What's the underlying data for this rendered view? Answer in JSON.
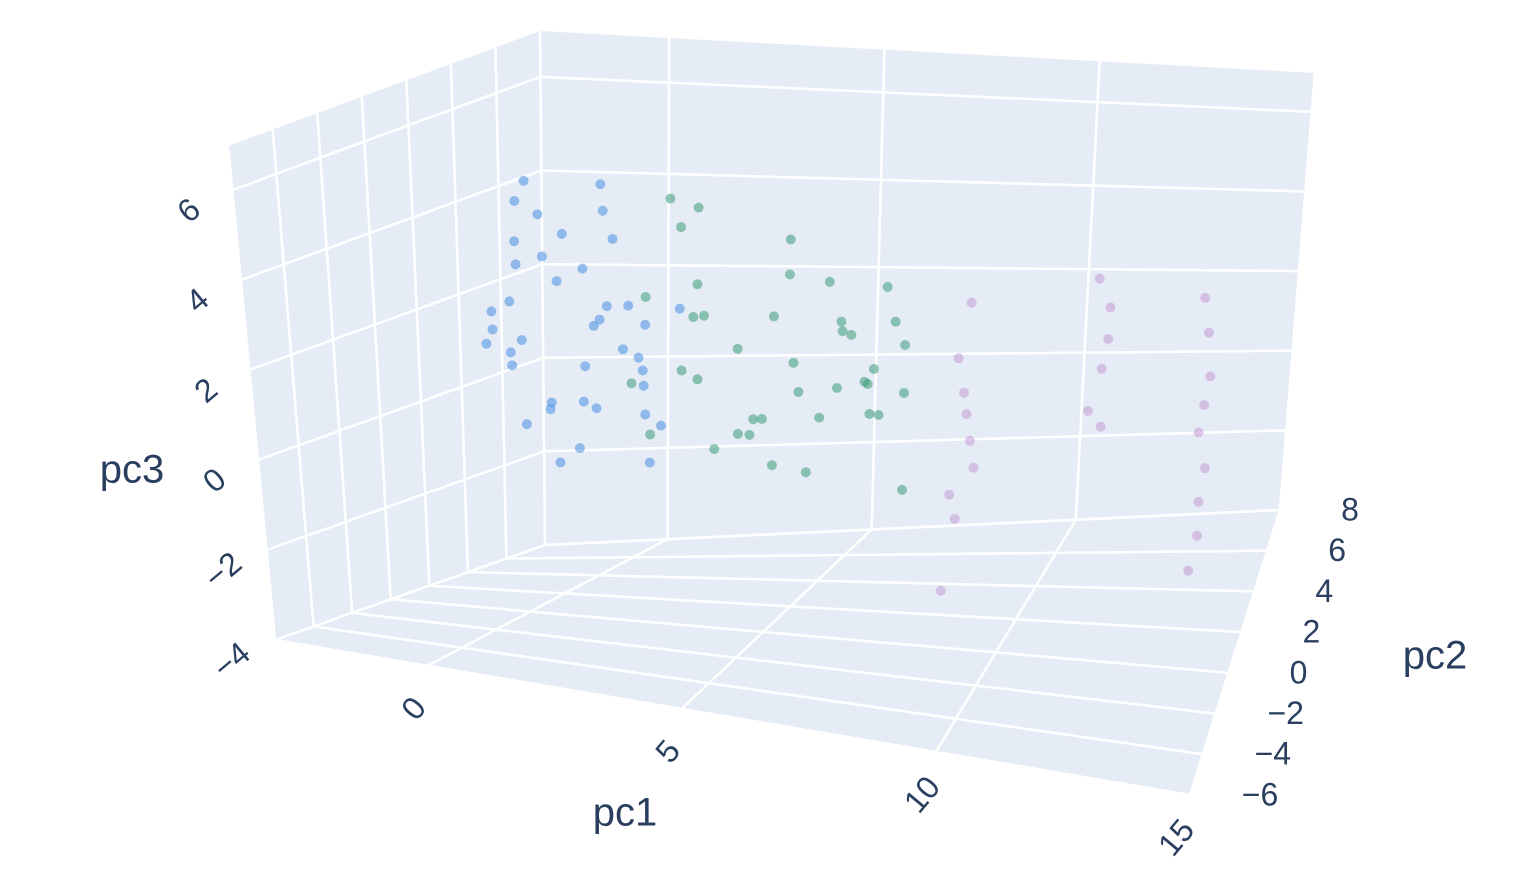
{
  "chart_data": {
    "type": "scatter3d",
    "x_label": "pc1",
    "y_label": "pc2",
    "z_label": "pc3",
    "xlim": [
      -3,
      15
    ],
    "ylim": [
      -6,
      8
    ],
    "zlim": [
      -4,
      7
    ],
    "xticks": [
      0,
      5,
      10,
      15
    ],
    "yticks": [
      {
        "value": -6,
        "label": "−6"
      },
      {
        "value": -4,
        "label": "−4"
      },
      {
        "value": -2,
        "label": "−2"
      },
      0,
      2,
      4,
      6,
      8
    ],
    "zticks": [
      {
        "value": -4,
        "label": "−4"
      },
      {
        "value": -2,
        "label": "−2"
      },
      0,
      2,
      4,
      6
    ],
    "grid": true,
    "series": [
      {
        "color": "#4a90e2",
        "x": [
          -1.2,
          -0.5,
          0.3,
          1.1,
          -0.8,
          0.6,
          1.8,
          -1.5,
          0.0,
          0.9,
          2.2,
          -0.3,
          1.4,
          -1.0,
          0.5,
          1.9,
          -0.6,
          0.2,
          1.2,
          -1.3,
          0.8,
          2.4,
          -0.1,
          1.6,
          -0.9,
          0.4,
          1.0,
          -0.4,
          2.0,
          0.7,
          -1.1,
          1.3,
          0.1,
          -0.7,
          1.7,
          0.3,
          -0.2,
          1.5,
          0.9,
          -1.4
        ],
        "y": [
          1.2,
          2.5,
          0.8,
          3.1,
          1.9,
          0.4,
          2.2,
          3.5,
          1.5,
          2.8,
          0.9,
          3.8,
          1.1,
          2.0,
          3.3,
          0.6,
          1.7,
          2.9,
          0.2,
          3.0,
          1.4,
          2.6,
          0.7,
          3.6,
          2.3,
          1.0,
          3.9,
          0.5,
          1.8,
          2.7,
          1.3,
          3.4,
          2.1,
          0.3,
          2.4,
          3.2,
          1.6,
          0.1,
          2.0,
          2.9
        ],
        "z": [
          1.5,
          3.2,
          0.4,
          2.1,
          4.5,
          -0.8,
          1.9,
          2.8,
          0.1,
          3.6,
          1.2,
          -1.2,
          2.5,
          0.9,
          4.1,
          1.7,
          -0.3,
          2.9,
          0.6,
          3.4,
          1.1,
          2.2,
          5.2,
          -0.6,
          1.4,
          3.0,
          0.8,
          2.6,
          -1.0,
          4.8,
          1.8,
          0.3,
          3.8,
          2.4,
          -0.1,
          1.6,
          4.3,
          0.5,
          2.0,
          1.0
        ]
      },
      {
        "color": "#3a9b78",
        "x": [
          2.1,
          3.4,
          4.6,
          5.8,
          7.2,
          2.8,
          3.9,
          5.1,
          6.3,
          7.6,
          2.5,
          4.2,
          5.5,
          6.8,
          7.9,
          3.1,
          4.8,
          6.0,
          7.4,
          2.3,
          3.6,
          5.3,
          6.6,
          7.8,
          2.9,
          4.4,
          5.7,
          7.0,
          3.3,
          4.9,
          6.2,
          7.5,
          2.6,
          4.0,
          5.4,
          6.9,
          3.8,
          5.0,
          6.4,
          7.7
        ],
        "y": [
          0.5,
          1.2,
          -0.4,
          2.0,
          0.8,
          1.6,
          -0.8,
          0.3,
          1.9,
          -0.2,
          2.4,
          0.9,
          1.4,
          -0.6,
          0.1,
          1.8,
          0.6,
          2.2,
          -0.9,
          1.0,
          0.2,
          1.5,
          2.6,
          -0.3,
          0.7,
          1.3,
          -0.5,
          0.4,
          2.1,
          1.1,
          -0.1,
          1.7,
          0.0,
          2.3,
          0.8,
          1.2,
          -0.7,
          1.9,
          0.5,
          0.9
        ],
        "z": [
          1.0,
          2.4,
          0.3,
          3.1,
          0.6,
          4.2,
          1.5,
          -0.5,
          2.0,
          3.6,
          0.9,
          1.8,
          -0.9,
          2.7,
          1.3,
          4.6,
          0.4,
          2.2,
          1.7,
          -0.2,
          3.3,
          0.8,
          1.1,
          2.9,
          5.0,
          0.2,
          3.8,
          1.4,
          -0.7,
          2.5,
          0.7,
          1.9,
          3.0,
          -0.4,
          1.6,
          0.5,
          2.8,
          4.0,
          1.2,
          -1.0
        ]
      },
      {
        "color": "#c79bd6",
        "x": [
          9.8,
          10.1,
          10.0,
          9.9,
          10.2,
          9.7,
          10.0,
          10.1,
          9.9,
          12.4,
          12.6,
          12.5,
          12.3,
          12.5,
          12.6,
          14.4,
          14.5,
          14.6,
          14.5,
          14.4,
          14.6,
          14.5,
          14.5,
          14.4
        ],
        "y": [
          -4.2,
          -3.8,
          -4.0,
          -4.1,
          -3.9,
          -4.3,
          -3.7,
          -4.0,
          -4.1,
          -3.3,
          -3.1,
          -3.2,
          -3.4,
          -3.0,
          -3.2,
          -3.0,
          -2.9,
          -3.1,
          -3.0,
          -2.8,
          -3.1,
          -3.0,
          -2.9,
          -3.2
        ],
        "z": [
          0.5,
          1.5,
          2.5,
          3.2,
          1.0,
          -1.4,
          2.0,
          4.3,
          0.0,
          4.8,
          4.2,
          3.0,
          2.2,
          1.8,
          3.6,
          4.5,
          3.8,
          3.0,
          2.4,
          1.8,
          1.2,
          0.5,
          -0.2,
          -0.8
        ]
      }
    ]
  }
}
